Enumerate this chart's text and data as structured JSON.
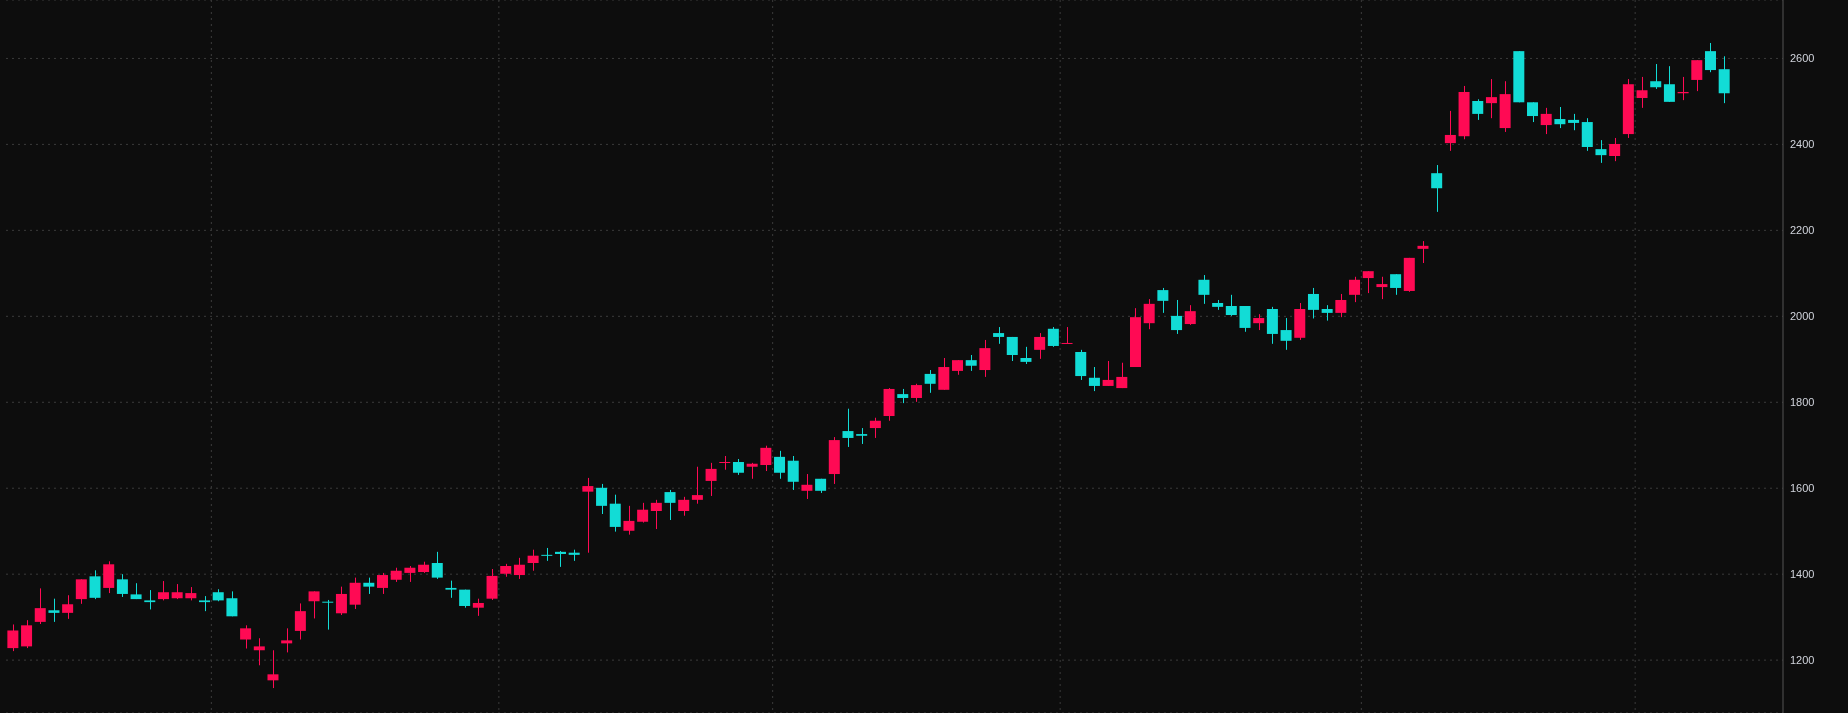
{
  "chart_data": {
    "type": "candlestick",
    "categories": [
      null,
      null,
      null,
      null,
      null,
      null,
      null,
      null,
      null,
      null,
      null,
      null,
      null,
      null,
      null,
      null,
      null,
      null,
      null,
      null,
      null,
      null,
      null,
      null,
      null,
      null,
      null,
      null,
      null,
      null,
      null,
      null,
      null,
      null,
      null,
      null,
      null,
      null,
      null,
      null,
      null,
      null,
      null,
      null,
      null,
      null,
      null,
      null,
      null,
      null,
      null,
      null,
      null,
      null,
      null,
      null,
      null,
      null,
      null,
      null,
      null,
      null,
      null,
      null,
      null,
      null,
      null,
      null,
      null,
      null,
      null,
      null,
      null,
      null,
      null,
      null,
      null,
      null,
      null,
      null,
      null,
      null,
      null,
      null,
      null,
      null,
      null,
      null,
      null,
      null,
      null,
      null,
      null,
      null,
      null,
      null,
      null,
      null,
      null,
      null,
      null,
      null,
      null,
      null,
      null,
      null,
      null,
      null,
      null,
      null,
      null,
      null,
      null,
      null,
      null,
      null,
      null,
      null,
      null,
      null,
      null,
      null,
      null,
      null,
      null,
      null
    ],
    "ohlc": [
      [
        1228,
        1283,
        1221,
        1269
      ],
      [
        1232,
        1293,
        1228,
        1281
      ],
      [
        1289,
        1367,
        1284,
        1321
      ],
      [
        1316,
        1343,
        1289,
        1310
      ],
      [
        1310,
        1351,
        1296,
        1330
      ],
      [
        1342,
        1388,
        1331,
        1388
      ],
      [
        1395,
        1409,
        1342,
        1345
      ],
      [
        1368,
        1430,
        1356,
        1423
      ],
      [
        1388,
        1400,
        1347,
        1354
      ],
      [
        1353,
        1379,
        1342,
        1342
      ],
      [
        1339,
        1363,
        1318,
        1335
      ],
      [
        1342,
        1384,
        1339,
        1358
      ],
      [
        1344,
        1377,
        1342,
        1358
      ],
      [
        1344,
        1370,
        1339,
        1356
      ],
      [
        1339,
        1349,
        1314,
        1335
      ],
      [
        1358,
        1365,
        1337,
        1339
      ],
      [
        1344,
        1360,
        1302,
        1302
      ],
      [
        1248,
        1281,
        1227,
        1274
      ],
      [
        1223,
        1251,
        1188,
        1232
      ],
      [
        1153,
        1223,
        1135,
        1167
      ],
      [
        1239,
        1274,
        1218,
        1246
      ],
      [
        1268,
        1332,
        1248,
        1314
      ],
      [
        1337,
        1360,
        1297,
        1360
      ],
      [
        1336,
        1340,
        1271,
        1334
      ],
      [
        1309,
        1371,
        1305,
        1354
      ],
      [
        1329,
        1392,
        1319,
        1380
      ],
      [
        1380,
        1392,
        1354,
        1371
      ],
      [
        1368,
        1403,
        1354,
        1398
      ],
      [
        1387,
        1415,
        1382,
        1408
      ],
      [
        1403,
        1419,
        1382,
        1415
      ],
      [
        1405,
        1429,
        1403,
        1422
      ],
      [
        1426,
        1452,
        1389,
        1392
      ],
      [
        1368,
        1385,
        1345,
        1364
      ],
      [
        1364,
        1364,
        1322,
        1326
      ],
      [
        1322,
        1343,
        1303,
        1333
      ],
      [
        1343,
        1412,
        1340,
        1396
      ],
      [
        1401,
        1424,
        1394,
        1419
      ],
      [
        1398,
        1438,
        1389,
        1422
      ],
      [
        1426,
        1457,
        1408,
        1443
      ],
      [
        1445,
        1461,
        1431,
        1443
      ],
      [
        1452,
        1454,
        1417,
        1447
      ],
      [
        1450,
        1457,
        1431,
        1445
      ],
      [
        1592,
        1624,
        1450,
        1605
      ],
      [
        1601,
        1610,
        1540,
        1559
      ],
      [
        1564,
        1585,
        1499,
        1510
      ],
      [
        1501,
        1559,
        1492,
        1524
      ],
      [
        1522,
        1566,
        1520,
        1550
      ],
      [
        1547,
        1573,
        1505,
        1566
      ],
      [
        1591,
        1596,
        1526,
        1566
      ],
      [
        1547,
        1580,
        1536,
        1573
      ],
      [
        1573,
        1650,
        1564,
        1584
      ],
      [
        1617,
        1659,
        1582,
        1645
      ],
      [
        1659,
        1675,
        1643,
        1661
      ],
      [
        1661,
        1668,
        1631,
        1636
      ],
      [
        1650,
        1659,
        1622,
        1657
      ],
      [
        1654,
        1699,
        1640,
        1694
      ],
      [
        1673,
        1687,
        1622,
        1636
      ],
      [
        1664,
        1675,
        1596,
        1615
      ],
      [
        1594,
        1633,
        1575,
        1608
      ],
      [
        1622,
        1622,
        1589,
        1594
      ],
      [
        1633,
        1719,
        1610,
        1712
      ],
      [
        1733,
        1785,
        1696,
        1717
      ],
      [
        1726,
        1740,
        1703,
        1722
      ],
      [
        1740,
        1764,
        1717,
        1757
      ],
      [
        1768,
        1833,
        1757,
        1831
      ],
      [
        1819,
        1831,
        1798,
        1810
      ],
      [
        1810,
        1843,
        1801,
        1840
      ],
      [
        1866,
        1875,
        1822,
        1843
      ],
      [
        1829,
        1903,
        1829,
        1882
      ],
      [
        1873,
        1898,
        1864,
        1898
      ],
      [
        1898,
        1910,
        1873,
        1885
      ],
      [
        1875,
        1945,
        1859,
        1926
      ],
      [
        1961,
        1975,
        1936,
        1952
      ],
      [
        1952,
        1952,
        1896,
        1910
      ],
      [
        1903,
        1929,
        1889,
        1894
      ],
      [
        1922,
        1961,
        1901,
        1952
      ],
      [
        1971,
        1975,
        1929,
        1931
      ],
      [
        1936,
        1975,
        1936,
        1938
      ],
      [
        1917,
        1922,
        1852,
        1861
      ],
      [
        1857,
        1882,
        1826,
        1838
      ],
      [
        1838,
        1896,
        1838,
        1852
      ],
      [
        1833,
        1892,
        1833,
        1859
      ],
      [
        1882,
        2019,
        1882,
        1998
      ],
      [
        1984,
        2040,
        1970,
        2029
      ],
      [
        2061,
        2066,
        2008,
        2036
      ],
      [
        2001,
        2038,
        1959,
        1968
      ],
      [
        1982,
        2026,
        1980,
        2012
      ],
      [
        2085,
        2096,
        2029,
        2050
      ],
      [
        2031,
        2038,
        2015,
        2022
      ],
      [
        2024,
        2050,
        2001,
        2003
      ],
      [
        2024,
        2024,
        1964,
        1973
      ],
      [
        1984,
        2005,
        1968,
        1996
      ],
      [
        2017,
        2022,
        1936,
        1959
      ],
      [
        1968,
        1996,
        1922,
        1943
      ],
      [
        1950,
        2031,
        1945,
        2017
      ],
      [
        2052,
        2066,
        1995,
        2015
      ],
      [
        2017,
        2026,
        1990,
        2008
      ],
      [
        2008,
        2052,
        1998,
        2038
      ],
      [
        2050,
        2092,
        2033,
        2085
      ],
      [
        2089,
        2105,
        2054,
        2105
      ],
      [
        2068,
        2092,
        2040,
        2075
      ],
      [
        2098,
        2098,
        2050,
        2066
      ],
      [
        2059,
        2136,
        2057,
        2136
      ],
      [
        2157,
        2175,
        2124,
        2164
      ],
      [
        2333,
        2352,
        2243,
        2298
      ],
      [
        2403,
        2478,
        2385,
        2422
      ],
      [
        2419,
        2536,
        2412,
        2522
      ],
      [
        2501,
        2505,
        2457,
        2471
      ],
      [
        2496,
        2552,
        2461,
        2510
      ],
      [
        2438,
        2547,
        2429,
        2517
      ],
      [
        2617,
        2617,
        2498,
        2498
      ],
      [
        2498,
        2498,
        2452,
        2466
      ],
      [
        2445,
        2485,
        2424,
        2471
      ],
      [
        2459,
        2487,
        2438,
        2447
      ],
      [
        2457,
        2471,
        2433,
        2450
      ],
      [
        2452,
        2461,
        2385,
        2394
      ],
      [
        2389,
        2410,
        2357,
        2375
      ],
      [
        2373,
        2415,
        2361,
        2401
      ],
      [
        2424,
        2552,
        2415,
        2540
      ],
      [
        2508,
        2557,
        2485,
        2526
      ],
      [
        2547,
        2587,
        2529,
        2533
      ],
      [
        2540,
        2582,
        2499,
        2499
      ],
      [
        2519,
        2557,
        2503,
        2522
      ],
      [
        2550,
        2596,
        2524,
        2596
      ],
      [
        2617,
        2636,
        2568,
        2573
      ],
      [
        2575,
        2605,
        2496,
        2519
      ]
    ],
    "colors": [
      "#ff0a54",
      "#ff0a54",
      "#ff0a54",
      "#12dcd6",
      "#ff0a54",
      "#ff0a54",
      "#12dcd6",
      "#ff0a54",
      "#12dcd6",
      "#12dcd6",
      "#12dcd6",
      "#ff0a54",
      "#ff0a54",
      "#ff0a54",
      "#12dcd6",
      "#12dcd6",
      "#12dcd6",
      "#ff0a54",
      "#ff0a54",
      "#ff0a54",
      "#ff0a54",
      "#ff0a54",
      "#ff0a54",
      "#12dcd6",
      "#ff0a54",
      "#ff0a54",
      "#12dcd6",
      "#ff0a54",
      "#ff0a54",
      "#ff0a54",
      "#ff0a54",
      "#12dcd6",
      "#12dcd6",
      "#12dcd6",
      "#ff0a54",
      "#ff0a54",
      "#ff0a54",
      "#ff0a54",
      "#ff0a54",
      "#12dcd6",
      "#12dcd6",
      "#12dcd6",
      "#ff0a54",
      "#12dcd6",
      "#12dcd6",
      "#ff0a54",
      "#ff0a54",
      "#ff0a54",
      "#12dcd6",
      "#ff0a54",
      "#ff0a54",
      "#ff0a54",
      "#ff0a54",
      "#12dcd6",
      "#ff0a54",
      "#ff0a54",
      "#12dcd6",
      "#12dcd6",
      "#ff0a54",
      "#12dcd6",
      "#ff0a54",
      "#12dcd6",
      "#12dcd6",
      "#ff0a54",
      "#ff0a54",
      "#12dcd6",
      "#ff0a54",
      "#12dcd6",
      "#ff0a54",
      "#ff0a54",
      "#12dcd6",
      "#ff0a54",
      "#12dcd6",
      "#12dcd6",
      "#12dcd6",
      "#ff0a54",
      "#12dcd6",
      "#ff0a54",
      "#12dcd6",
      "#12dcd6",
      "#ff0a54",
      "#ff0a54",
      "#ff0a54",
      "#ff0a54",
      "#12dcd6",
      "#12dcd6",
      "#ff0a54",
      "#12dcd6",
      "#12dcd6",
      "#12dcd6",
      "#12dcd6",
      "#ff0a54",
      "#12dcd6",
      "#12dcd6",
      "#ff0a54",
      "#12dcd6",
      "#12dcd6",
      "#ff0a54",
      "#ff0a54",
      "#ff0a54",
      "#ff0a54",
      "#12dcd6",
      "#ff0a54",
      "#ff0a54",
      "#12dcd6",
      "#ff0a54",
      "#ff0a54",
      "#12dcd6",
      "#ff0a54",
      "#ff0a54",
      "#12dcd6",
      "#12dcd6",
      "#ff0a54",
      "#12dcd6",
      "#12dcd6",
      "#12dcd6",
      "#12dcd6",
      "#ff0a54",
      "#ff0a54",
      "#ff0a54",
      "#12dcd6",
      "#12dcd6",
      "#ff0a54",
      "#ff0a54",
      "#12dcd6",
      "#12dcd6"
    ],
    "ylim": [
      1077,
      2736
    ],
    "yticks": [
      1200,
      1400,
      1600,
      1800,
      2000,
      2200,
      2400,
      2600
    ],
    "grid": "y",
    "tick_labels": "y"
  }
}
